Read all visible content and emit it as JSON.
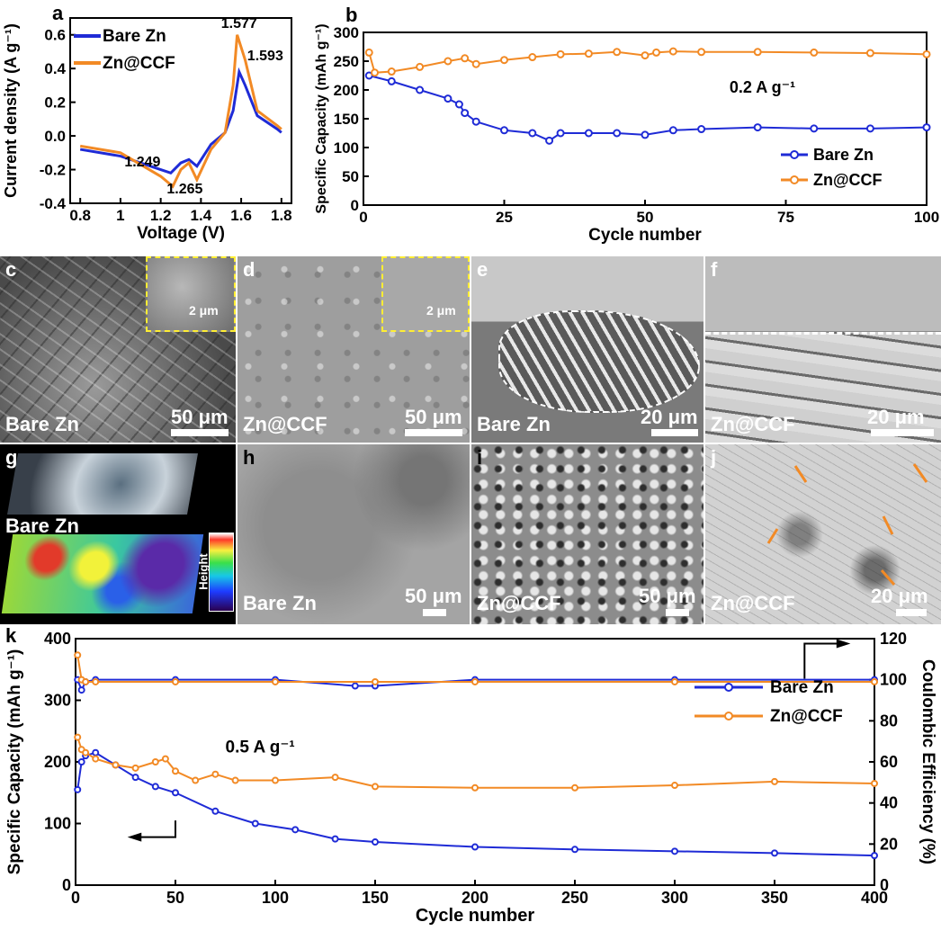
{
  "chart_data": [
    {
      "type": "line",
      "panel": "a",
      "xlabel": "Voltage (V)",
      "ylabel": "Current density (A g⁻¹)",
      "xlim": [
        0.75,
        1.85
      ],
      "ylim": [
        -0.4,
        0.7
      ],
      "xticks": [
        0.8,
        1.0,
        1.2,
        1.4,
        1.6,
        1.8
      ],
      "yticks": [
        -0.4,
        -0.2,
        0.0,
        0.2,
        0.4,
        0.6
      ],
      "legend": [
        "Bare Zn",
        "Zn@CCF"
      ],
      "annotations": [
        "1.577",
        "1.593",
        "1.249",
        "1.265"
      ],
      "series": [
        {
          "name": "Bare Zn",
          "color": "#1f2bd6",
          "x": [
            0.8,
            1.0,
            1.2,
            1.25,
            1.3,
            1.34,
            1.38,
            1.45,
            1.52,
            1.56,
            1.59,
            1.62,
            1.68,
            1.78,
            1.8
          ],
          "y": [
            -0.08,
            -0.12,
            -0.2,
            -0.22,
            -0.16,
            -0.14,
            -0.18,
            -0.05,
            0.02,
            0.15,
            0.38,
            0.3,
            0.12,
            0.04,
            0.02
          ]
        },
        {
          "name": "Zn@CCF",
          "color": "#f28a25",
          "x": [
            0.8,
            1.0,
            1.2,
            1.26,
            1.3,
            1.34,
            1.38,
            1.45,
            1.52,
            1.56,
            1.58,
            1.62,
            1.68,
            1.78,
            1.8
          ],
          "y": [
            -0.06,
            -0.1,
            -0.24,
            -0.3,
            -0.2,
            -0.16,
            -0.26,
            -0.08,
            0.02,
            0.3,
            0.6,
            0.45,
            0.15,
            0.06,
            0.04
          ]
        }
      ]
    },
    {
      "type": "line",
      "panel": "b",
      "xlabel": "Cycle number",
      "ylabel": "Specific Capacity (mAh g⁻¹)",
      "xlim": [
        0,
        100
      ],
      "ylim": [
        0,
        300
      ],
      "xticks": [
        0,
        25,
        50,
        75,
        100
      ],
      "yticks": [
        0,
        50,
        100,
        150,
        200,
        250,
        300
      ],
      "annotation": "0.2 A g⁻¹",
      "legend": [
        "Bare Zn",
        "Zn@CCF"
      ],
      "series": [
        {
          "name": "Bare Zn",
          "color": "#1f2bd6",
          "x": [
            1,
            5,
            10,
            15,
            17,
            18,
            20,
            25,
            30,
            33,
            35,
            40,
            45,
            50,
            55,
            60,
            70,
            80,
            90,
            100
          ],
          "y": [
            225,
            215,
            200,
            185,
            175,
            160,
            145,
            130,
            125,
            112,
            125,
            125,
            125,
            122,
            130,
            132,
            135,
            133,
            133,
            135
          ]
        },
        {
          "name": "Zn@CCF",
          "color": "#f28a25",
          "x": [
            1,
            2,
            5,
            10,
            15,
            18,
            20,
            25,
            30,
            35,
            40,
            45,
            50,
            52,
            55,
            60,
            70,
            80,
            90,
            100
          ],
          "y": [
            265,
            230,
            232,
            240,
            250,
            255,
            245,
            252,
            257,
            262,
            263,
            266,
            260,
            265,
            267,
            266,
            266,
            265,
            264,
            262
          ]
        }
      ]
    },
    {
      "type": "line",
      "panel": "k",
      "xlabel": "Cycle number",
      "ylabel": "Specific Capacity (mAh g⁻¹)",
      "y2label": "Coulombic Efficiency (%)",
      "xlim": [
        0,
        400
      ],
      "ylim": [
        0,
        400
      ],
      "y2lim": [
        0,
        120
      ],
      "xticks": [
        0,
        50,
        100,
        150,
        200,
        250,
        300,
        350,
        400
      ],
      "yticks": [
        0,
        100,
        200,
        300,
        400
      ],
      "y2ticks": [
        0,
        20,
        40,
        60,
        80,
        100,
        120
      ],
      "annotation": "0.5 A g⁻¹",
      "legend": [
        "Bare Zn",
        "Zn@CCF"
      ],
      "series": [
        {
          "name": "Bare Zn",
          "color": "#1f2bd6",
          "x": [
            1,
            3,
            5,
            10,
            20,
            30,
            40,
            50,
            70,
            90,
            110,
            130,
            150,
            200,
            250,
            300,
            350,
            400
          ],
          "y": [
            155,
            200,
            210,
            215,
            195,
            175,
            160,
            150,
            120,
            100,
            90,
            75,
            70,
            62,
            58,
            55,
            52,
            48
          ]
        },
        {
          "name": "Zn@CCF",
          "color": "#f28a25",
          "x": [
            1,
            3,
            5,
            10,
            20,
            30,
            40,
            45,
            50,
            60,
            70,
            80,
            100,
            130,
            150,
            200,
            250,
            300,
            350,
            400
          ],
          "y": [
            240,
            220,
            215,
            205,
            195,
            190,
            200,
            205,
            185,
            170,
            180,
            170,
            170,
            175,
            160,
            158,
            158,
            162,
            168,
            165
          ]
        },
        {
          "name": "Bare Zn CE",
          "color": "#1f2bd6",
          "axis": "right",
          "x": [
            1,
            3,
            5,
            10,
            50,
            100,
            140,
            150,
            200,
            300,
            400
          ],
          "y": [
            100,
            95,
            99,
            100,
            100,
            100,
            97,
            97,
            100,
            100,
            100
          ]
        },
        {
          "name": "Zn@CCF CE",
          "color": "#f28a25",
          "axis": "right",
          "x": [
            1,
            3,
            5,
            10,
            50,
            100,
            150,
            200,
            300,
            400
          ],
          "y": [
            112,
            100,
            99,
            99,
            99,
            99,
            99,
            99,
            99,
            99
          ]
        }
      ]
    }
  ],
  "panels": {
    "c": {
      "label": "c",
      "caption": "Bare Zn",
      "scale": "50 μm",
      "inset_scale": "2 μm"
    },
    "d": {
      "label": "d",
      "caption": "Zn@CCF",
      "scale": "50 μm",
      "inset_scale": "2 μm"
    },
    "e": {
      "label": "e",
      "caption": "Bare Zn",
      "scale": "20 μm"
    },
    "f": {
      "label": "f",
      "caption": "Zn@CCF",
      "scale": "20 μm"
    },
    "g": {
      "label": "g",
      "caption": "Bare Zn",
      "height_label": "Height"
    },
    "h": {
      "label": "h",
      "caption": "Bare Zn",
      "scale": "50 μm"
    },
    "i": {
      "label": "i",
      "caption": "Zn@CCF",
      "scale": "50 μm"
    },
    "j": {
      "label": "j",
      "caption": "Zn@CCF",
      "scale": "20 μm"
    }
  },
  "colors": {
    "bare": "#1f2bd6",
    "ccf": "#f28a25"
  }
}
